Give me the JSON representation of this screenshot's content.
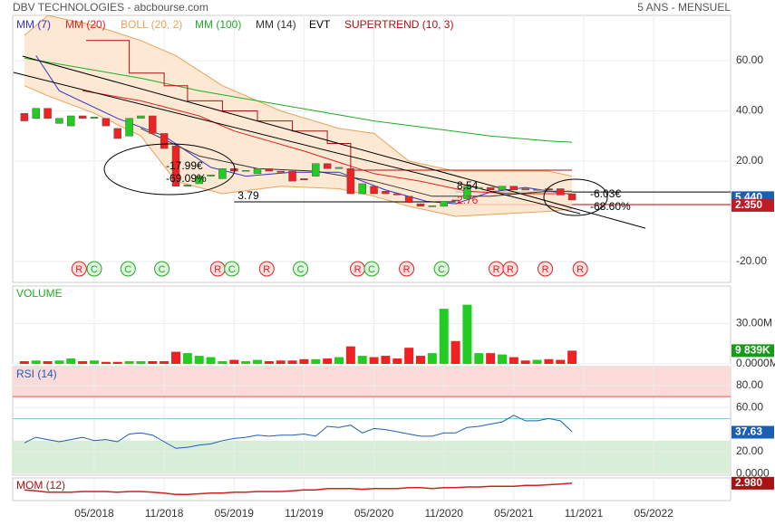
{
  "header": {
    "title": "DBV TECHNOLOGIES - abcbourse.com",
    "period": "5 ANS - MENSUEL"
  },
  "chart_data": [
    {
      "type": "candlestick",
      "x": [
        0,
        1,
        2,
        3,
        4,
        5,
        6,
        7,
        8,
        9,
        10,
        11,
        12,
        13,
        14,
        15,
        16,
        17,
        18,
        19,
        20,
        21,
        22,
        23,
        24,
        25,
        26,
        27,
        28,
        29,
        30,
        31,
        32,
        33,
        34,
        35,
        36,
        37,
        38,
        39,
        40,
        41,
        42,
        43,
        44,
        45,
        46,
        47
      ],
      "open": [
        39,
        37,
        41,
        35,
        34,
        38,
        37,
        37,
        33,
        30,
        37,
        38,
        31,
        26,
        10,
        11,
        14,
        13,
        17,
        16,
        15,
        17,
        16,
        16,
        13,
        14,
        19,
        17,
        17,
        7,
        10,
        8,
        7,
        6,
        3,
        2,
        2,
        4.5,
        5,
        9,
        9.5,
        8.5,
        10,
        9,
        8.5,
        9,
        9,
        7
      ],
      "close": [
        36,
        41,
        37,
        37,
        38,
        37,
        37.5,
        34,
        29,
        37,
        38,
        31,
        25,
        10,
        10.5,
        14,
        14.5,
        17,
        16,
        16.3,
        17,
        16,
        15.5,
        12,
        12.5,
        19,
        17,
        17.5,
        7,
        11,
        7,
        7,
        6.5,
        3.5,
        2,
        2.2,
        4,
        4.3,
        10,
        9.5,
        8.5,
        10,
        8.5,
        8.5,
        8.7,
        8.5,
        6.5,
        4.5
      ],
      "up_color": "#22cc22",
      "down_color": "#ee2222",
      "xlim": [
        -1,
        60.6
      ],
      "xticks": [
        {
          "value": 6,
          "label": "05/2018"
        },
        {
          "value": 12,
          "label": "11/2018"
        },
        {
          "value": 18,
          "label": "05/2019"
        },
        {
          "value": 24,
          "label": "11/2019"
        },
        {
          "value": 30,
          "label": "05/2020"
        },
        {
          "value": 36,
          "label": "11/2020"
        },
        {
          "value": 42,
          "label": "05/2021"
        },
        {
          "value": 48,
          "label": "11/2021"
        },
        {
          "value": 54,
          "label": "05/2022"
        }
      ],
      "ylim": [
        -28.3,
        78
      ],
      "yticks": [
        {
          "value": 60,
          "label": "60.00"
        },
        {
          "value": 40,
          "label": "40.00"
        },
        {
          "value": 20,
          "label": "20.00"
        },
        {
          "value": -20,
          "label": "-20.00"
        }
      ],
      "grid": true,
      "series": [
        {
          "name": "MM (7)",
          "color": "#3333cc",
          "x": [
            1,
            3,
            8,
            12,
            16,
            19,
            23,
            27,
            31,
            34.5,
            37,
            40,
            43,
            47
          ],
          "values": [
            62,
            48,
            37,
            30,
            17.5,
            14,
            15.6,
            15.6,
            8.5,
            4,
            3,
            7.7,
            9.5,
            6.7
          ]
        },
        {
          "name": "MM (20)",
          "color": "#dd2222",
          "x": [
            5,
            10,
            15,
            18,
            24,
            30,
            34,
            38,
            42,
            47
          ],
          "values": [
            48,
            44,
            38,
            32,
            24,
            15,
            12,
            8,
            7,
            7
          ]
        },
        {
          "name": "BOLL (20, 2)",
          "color": "#e8a25a",
          "fill": "#fde3c8",
          "x": [
            0,
            2,
            6,
            10,
            13,
            17,
            22,
            27,
            30,
            33,
            37,
            41,
            45,
            47
          ],
          "upper": [
            70,
            78,
            74,
            68,
            62,
            50,
            40,
            33,
            31,
            20,
            16,
            16,
            16,
            14
          ],
          "lower": [
            50,
            46,
            39,
            30,
            12,
            7,
            10,
            9,
            6,
            2,
            -2,
            -1,
            0,
            1
          ]
        },
        {
          "name": "MM (100)",
          "color": "#22aa22",
          "x": [
            0,
            5,
            10,
            15,
            20,
            25,
            30,
            35,
            40,
            45,
            47
          ],
          "values": [
            61,
            57,
            53,
            48,
            44,
            40,
            36,
            33,
            30,
            28,
            27.5
          ]
        },
        {
          "name": "MM (14)",
          "color": "#333333",
          "x": [
            10,
            15,
            20,
            25,
            30,
            35,
            40,
            45,
            47
          ],
          "values": [
            33,
            22,
            17,
            16,
            12,
            6,
            6,
            8,
            8
          ]
        },
        {
          "name": "SUPERTREND (10, 3)",
          "color": "#aa1111",
          "x": [
            5.3,
            9,
            9,
            12,
            12,
            14,
            14,
            17,
            17,
            20,
            20,
            23,
            23,
            26,
            26,
            28,
            28,
            47
          ],
          "values": [
            68,
            68,
            55,
            55,
            50,
            50,
            44,
            44,
            40,
            40,
            36,
            36,
            32,
            32,
            27,
            27,
            16.4,
            16.4
          ]
        }
      ],
      "events": {
        "name": "EVT",
        "items": [
          {
            "x": 4.7,
            "label": "R",
            "color": "#dd2222"
          },
          {
            "x": 6.0,
            "label": "C",
            "color": "#22aa22"
          },
          {
            "x": 8.9,
            "label": "C",
            "color": "#22aa22"
          },
          {
            "x": 11.8,
            "label": "C",
            "color": "#22aa22"
          },
          {
            "x": 16.6,
            "label": "R",
            "color": "#dd2222"
          },
          {
            "x": 17.8,
            "label": "C",
            "color": "#22aa22"
          },
          {
            "x": 20.8,
            "label": "R",
            "color": "#dd2222"
          },
          {
            "x": 23.7,
            "label": "C",
            "color": "#22aa22"
          },
          {
            "x": 28.6,
            "label": "R",
            "color": "#dd2222"
          },
          {
            "x": 29.8,
            "label": "C",
            "color": "#22aa22"
          },
          {
            "x": 32.8,
            "label": "R",
            "color": "#dd2222"
          },
          {
            "x": 35.8,
            "label": "C",
            "color": "#22aa22"
          },
          {
            "x": 40.5,
            "label": "R",
            "color": "#dd2222"
          },
          {
            "x": 41.7,
            "label": "R",
            "color": "#dd2222"
          },
          {
            "x": 44.7,
            "label": "R",
            "color": "#dd2222"
          },
          {
            "x": 47.7,
            "label": "R",
            "color": "#dd2222"
          }
        ]
      },
      "trendlines": [
        {
          "x": [
            -0.16,
            53.3
          ],
          "values": [
            61.8,
            -6.7
          ]
        },
        {
          "x": [
            -0.93,
            47.7
          ],
          "values": [
            55.3,
            -0.9
          ]
        }
      ],
      "lines": [
        {
          "x": [
            37,
            60.6
          ],
          "values": [
            7.7,
            7.7
          ],
          "color": "#000000"
        },
        {
          "x": [
            37,
            60.6
          ],
          "values": [
            2.7,
            2.7
          ],
          "color": "#cc0000"
        }
      ],
      "level": {
        "x": [
          18,
          37
        ],
        "value": 3.79
      },
      "annotations": [
        "-17.99€",
        "-69.09%",
        "8.54",
        "2.76",
        "-6.03€",
        "-68.60%"
      ],
      "badges": [
        {
          "value": 5.44,
          "label": "5.440",
          "color": "#1a5fb4"
        },
        {
          "value": 2.35,
          "label": "2.350",
          "color": "#c01c28"
        }
      ]
    },
    {
      "type": "volume",
      "title": "VOLUME",
      "title_color": "#22aa22",
      "x": [
        0,
        1,
        2,
        3,
        4,
        5,
        6,
        7,
        8,
        9,
        10,
        11,
        12,
        13,
        14,
        15,
        16,
        17,
        18,
        19,
        20,
        21,
        22,
        23,
        24,
        25,
        26,
        27,
        28,
        29,
        30,
        31,
        32,
        33,
        34,
        35,
        36,
        37,
        38,
        39,
        40,
        41,
        42,
        43,
        44,
        45,
        46,
        47
      ],
      "values": [
        2,
        2.5,
        2,
        2.5,
        4,
        2,
        2.5,
        1.5,
        1.5,
        2,
        2,
        2,
        2,
        9,
        8,
        6,
        5,
        2,
        3,
        2,
        3,
        2,
        2.5,
        2.5,
        3.5,
        3.5,
        4,
        5,
        13,
        6,
        5,
        6,
        4,
        12,
        6,
        8,
        41,
        17,
        44,
        8,
        8,
        7,
        5,
        2.5,
        3,
        3.5,
        3,
        9.839
      ],
      "ylim": [
        0,
        57.9
      ],
      "yticks": [
        {
          "value": 30,
          "label": "30.00M"
        },
        {
          "value": 0,
          "label": "0.0000M"
        }
      ],
      "badges": [
        {
          "value": 9.839,
          "label": "9 839K",
          "color": "#1a9a1a"
        }
      ]
    },
    {
      "type": "rsi",
      "title": "RSI (14)",
      "title_color": "#1a5fb4",
      "color": "#1a5fb4",
      "x": [
        0,
        1,
        2,
        3,
        4,
        5,
        6,
        7,
        8,
        9,
        10,
        11,
        12,
        13,
        14,
        15,
        16,
        17,
        18,
        19,
        20,
        21,
        22,
        23,
        24,
        25,
        26,
        27,
        28,
        29,
        30,
        31,
        32,
        33,
        34,
        35,
        36,
        37,
        38,
        39,
        40,
        41,
        42,
        43,
        44,
        45,
        46,
        47
      ],
      "values": [
        28,
        33,
        31,
        29,
        31,
        33,
        30,
        31,
        29,
        36,
        37,
        35,
        29,
        23,
        24,
        26,
        27,
        30,
        32,
        33,
        35,
        34,
        35,
        35,
        36,
        34,
        43,
        42,
        44,
        37,
        41,
        40,
        38,
        36,
        34,
        34,
        37,
        37,
        42,
        43,
        45,
        47,
        53,
        48,
        48,
        50,
        48,
        38
      ],
      "ylim": [
        -1.4,
        97.2
      ],
      "yticks": [
        {
          "value": 80,
          "label": "80.00"
        },
        {
          "value": 60,
          "label": "60.00"
        },
        {
          "value": 20,
          "label": "20.00"
        },
        {
          "value": 0,
          "label": "0.0000"
        }
      ],
      "zones": [
        {
          "range": [
            70,
            100
          ],
          "color": "#fbdada"
        },
        {
          "range": [
            0,
            30
          ],
          "color": "#d9eed9"
        }
      ],
      "lines": [
        {
          "value": 70,
          "color": "#dd5555"
        },
        {
          "value": 50,
          "color": "#88ccdd"
        }
      ],
      "badges": [
        {
          "value": 37.63,
          "label": "37.63",
          "color": "#1a5fb4"
        }
      ]
    },
    {
      "type": "mom",
      "title": "MOM (12)",
      "title_color": "#aa1111",
      "color": "#cc2222",
      "x": [
        0,
        1,
        2,
        3,
        4,
        5,
        6,
        7,
        8,
        9,
        10,
        11,
        12,
        13,
        14,
        15,
        16,
        17,
        18,
        19,
        20,
        21,
        22,
        23,
        24,
        25,
        26,
        27,
        28,
        29,
        30,
        31,
        32,
        33,
        34,
        35,
        36,
        37,
        38,
        39,
        40,
        41,
        42,
        43,
        44,
        45,
        46,
        47
      ],
      "values": [
        -6,
        -7,
        -9,
        -9,
        -9,
        -8,
        -8,
        -8,
        -9,
        -8,
        -8,
        -9,
        -10,
        -12,
        -12,
        -11,
        -10,
        -10,
        -9,
        -9,
        -8,
        -8,
        -8,
        -7,
        -6,
        -6,
        -4,
        -4,
        -4,
        -5,
        -4,
        -4,
        -4,
        -3,
        -3,
        -4,
        -3,
        -3,
        -2,
        -2,
        -1,
        -1,
        -1,
        0,
        0,
        1,
        2,
        3
      ],
      "ylim": [
        -20,
        10
      ],
      "badges": [
        {
          "value": 2.98,
          "label": "2.980",
          "color": "#aa1111"
        }
      ]
    }
  ]
}
